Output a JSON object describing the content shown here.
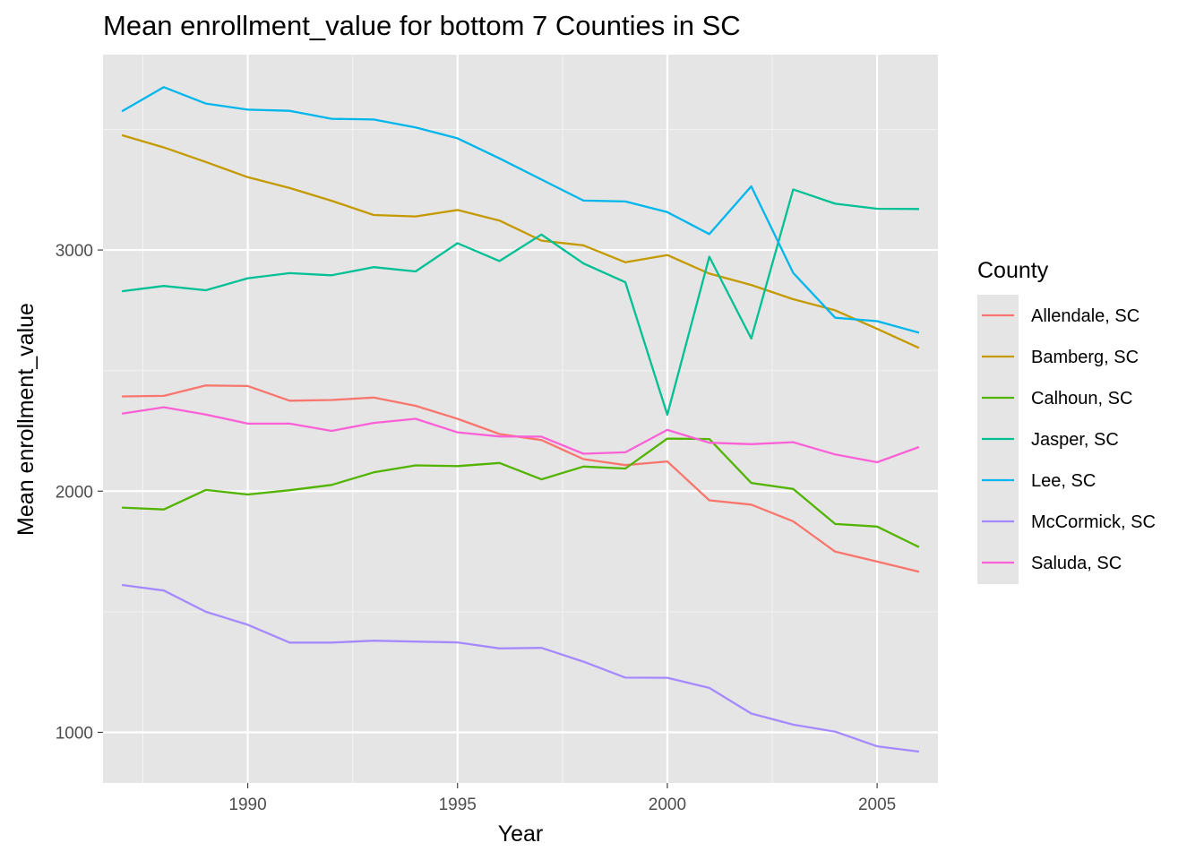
{
  "chart_data": {
    "type": "line",
    "title": "Mean enrollment_value for bottom 7 Counties in SC",
    "xlabel": "Year",
    "ylabel": "Mean enrollment_value",
    "xlim": [
      1986.55,
      2006.45
    ],
    "ylim": [
      790,
      3810
    ],
    "x_ticks": [
      1990,
      1995,
      2000,
      2005
    ],
    "x_tick_labels": [
      "1990",
      "1995",
      "2000",
      "2005"
    ],
    "x_minor_ticks": [
      1987.5,
      1992.5,
      1997.5,
      2002.5
    ],
    "y_ticks": [
      1000,
      2000,
      3000
    ],
    "y_tick_labels": [
      "1000",
      "2000",
      "3000"
    ],
    "y_minor_ticks": [
      1500,
      2500,
      3500
    ],
    "grid": true,
    "panel_background": "#e5e5e5",
    "legend": {
      "title": "County",
      "placement": "right"
    },
    "x": [
      1987,
      1988,
      1989,
      1990,
      1991,
      1992,
      1993,
      1994,
      1995,
      1996,
      1997,
      1998,
      1999,
      2000,
      2001,
      2002,
      2003,
      2004,
      2005,
      2006
    ],
    "series": [
      {
        "name": "Allendale, SC",
        "color": "#f8766d",
        "values": [
          2393,
          2395,
          2438,
          2436,
          2375,
          2378,
          2388,
          2354,
          2300,
          2237,
          2212,
          2133,
          2108,
          2123,
          1962,
          1944,
          1875,
          1749,
          1708,
          1666
        ]
      },
      {
        "name": "Bamberg, SC",
        "color": "#c49a00",
        "values": [
          3476,
          3425,
          3365,
          3302,
          3257,
          3204,
          3145,
          3139,
          3166,
          3122,
          3039,
          3019,
          2949,
          2979,
          2902,
          2855,
          2796,
          2750,
          2673,
          2594
        ]
      },
      {
        "name": "Calhoun, SC",
        "color": "#53b400",
        "values": [
          1932,
          1924,
          2005,
          1986,
          2004,
          2026,
          2078,
          2107,
          2104,
          2117,
          2049,
          2102,
          2094,
          2218,
          2216,
          2034,
          2009,
          1864,
          1853,
          1768
        ]
      },
      {
        "name": "Jasper, SC",
        "color": "#00c094",
        "values": [
          2829,
          2851,
          2833,
          2883,
          2904,
          2895,
          2929,
          2911,
          3028,
          2954,
          3064,
          2944,
          2866,
          2317,
          2972,
          2633,
          3251,
          3192,
          3171,
          3170
        ]
      },
      {
        "name": "Lee, SC",
        "color": "#00b6eb",
        "values": [
          3575,
          3675,
          3607,
          3582,
          3577,
          3544,
          3541,
          3508,
          3463,
          3380,
          3292,
          3205,
          3201,
          3157,
          3066,
          3264,
          2905,
          2719,
          2705,
          2657
        ]
      },
      {
        "name": "McCormick, SC",
        "color": "#a58aff",
        "values": [
          1611,
          1588,
          1500,
          1446,
          1372,
          1372,
          1380,
          1376,
          1373,
          1348,
          1350,
          1293,
          1227,
          1226,
          1184,
          1078,
          1032,
          1003,
          942,
          920
        ]
      },
      {
        "name": "Saluda, SC",
        "color": "#fb61d7",
        "values": [
          2321,
          2348,
          2318,
          2280,
          2280,
          2250,
          2283,
          2300,
          2244,
          2227,
          2226,
          2155,
          2161,
          2254,
          2201,
          2195,
          2203,
          2152,
          2120,
          2183
        ]
      }
    ]
  }
}
